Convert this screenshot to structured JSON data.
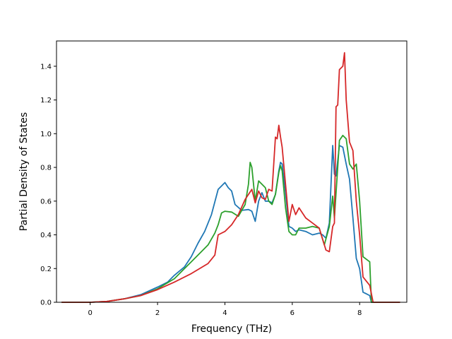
{
  "chart_data": {
    "type": "line",
    "title": "",
    "xlabel": "Frequency (THz)",
    "ylabel": "Partial Density of States",
    "xlim": [
      -1.0,
      9.4
    ],
    "ylim": [
      0.0,
      1.55
    ],
    "xticks": [
      0,
      2,
      4,
      6,
      8
    ],
    "yticks": [
      0.0,
      0.2,
      0.4,
      0.6,
      0.8,
      1.0,
      1.2,
      1.4
    ],
    "grid": false,
    "legend": "none",
    "series": [
      {
        "color": "#1f77b4",
        "x": [
          -0.85,
          0.0,
          0.5,
          1.0,
          1.5,
          2.0,
          2.3,
          2.5,
          2.8,
          3.0,
          3.2,
          3.4,
          3.6,
          3.8,
          3.95,
          4.0,
          4.1,
          4.2,
          4.3,
          4.5,
          4.7,
          4.8,
          4.9,
          5.0,
          5.1,
          5.2,
          5.3,
          5.4,
          5.5,
          5.6,
          5.65,
          5.7,
          5.8,
          5.9,
          6.0,
          6.1,
          6.2,
          6.4,
          6.6,
          6.8,
          6.9,
          7.0,
          7.1,
          7.2,
          7.25,
          7.3,
          7.4,
          7.5,
          7.6,
          7.7,
          7.8,
          7.9,
          8.0,
          8.1,
          8.2,
          8.3,
          8.35,
          8.4,
          9.2
        ],
        "y": [
          0.0,
          0.0,
          0.005,
          0.02,
          0.045,
          0.09,
          0.12,
          0.16,
          0.21,
          0.27,
          0.35,
          0.42,
          0.52,
          0.67,
          0.7,
          0.71,
          0.68,
          0.66,
          0.58,
          0.545,
          0.55,
          0.54,
          0.48,
          0.6,
          0.65,
          0.6,
          0.6,
          0.59,
          0.64,
          0.78,
          0.83,
          0.82,
          0.65,
          0.45,
          0.44,
          0.42,
          0.43,
          0.42,
          0.4,
          0.41,
          0.4,
          0.38,
          0.47,
          0.93,
          0.76,
          0.75,
          0.93,
          0.92,
          0.82,
          0.73,
          0.5,
          0.26,
          0.2,
          0.06,
          0.05,
          0.04,
          0.0,
          0.0,
          0.0
        ]
      },
      {
        "color": "#2ca02c",
        "x": [
          -0.85,
          0.0,
          0.5,
          1.0,
          1.5,
          2.0,
          2.5,
          3.0,
          3.3,
          3.5,
          3.7,
          3.8,
          3.9,
          4.0,
          4.2,
          4.4,
          4.6,
          4.7,
          4.75,
          4.8,
          4.9,
          5.0,
          5.1,
          5.2,
          5.3,
          5.4,
          5.5,
          5.6,
          5.65,
          5.7,
          5.8,
          5.9,
          6.0,
          6.1,
          6.2,
          6.4,
          6.6,
          6.8,
          6.95,
          7.1,
          7.2,
          7.25,
          7.35,
          7.4,
          7.5,
          7.6,
          7.7,
          7.8,
          7.9,
          8.0,
          8.1,
          8.3,
          8.35,
          8.4,
          9.2
        ],
        "y": [
          0.0,
          0.0,
          0.005,
          0.02,
          0.04,
          0.08,
          0.14,
          0.24,
          0.3,
          0.34,
          0.41,
          0.46,
          0.53,
          0.54,
          0.535,
          0.51,
          0.58,
          0.7,
          0.83,
          0.8,
          0.6,
          0.72,
          0.7,
          0.68,
          0.6,
          0.58,
          0.64,
          0.77,
          0.81,
          0.78,
          0.56,
          0.42,
          0.4,
          0.4,
          0.44,
          0.44,
          0.45,
          0.44,
          0.34,
          0.45,
          0.63,
          0.5,
          0.8,
          0.96,
          0.99,
          0.97,
          0.82,
          0.79,
          0.82,
          0.6,
          0.27,
          0.24,
          0.0,
          0.0,
          0.0
        ]
      },
      {
        "color": "#d62728",
        "x": [
          -0.85,
          0.0,
          0.5,
          1.0,
          1.5,
          2.0,
          2.5,
          3.0,
          3.5,
          3.7,
          3.8,
          4.0,
          4.2,
          4.4,
          4.6,
          4.8,
          4.9,
          5.0,
          5.1,
          5.2,
          5.3,
          5.4,
          5.5,
          5.55,
          5.6,
          5.65,
          5.7,
          5.8,
          5.9,
          6.0,
          6.1,
          6.2,
          6.4,
          6.6,
          6.8,
          7.0,
          7.1,
          7.2,
          7.25,
          7.3,
          7.35,
          7.4,
          7.5,
          7.55,
          7.6,
          7.7,
          7.8,
          7.9,
          8.0,
          8.1,
          8.3,
          8.4,
          9.2
        ],
        "y": [
          0.0,
          0.0,
          0.005,
          0.02,
          0.04,
          0.075,
          0.12,
          0.17,
          0.23,
          0.28,
          0.4,
          0.42,
          0.46,
          0.52,
          0.61,
          0.67,
          0.59,
          0.66,
          0.62,
          0.61,
          0.67,
          0.66,
          0.98,
          0.97,
          1.05,
          0.98,
          0.92,
          0.7,
          0.48,
          0.58,
          0.52,
          0.56,
          0.5,
          0.47,
          0.44,
          0.31,
          0.3,
          0.45,
          0.47,
          1.16,
          1.17,
          1.38,
          1.4,
          1.48,
          1.2,
          0.95,
          0.9,
          0.6,
          0.4,
          0.15,
          0.1,
          0.0,
          0.0
        ]
      }
    ]
  }
}
